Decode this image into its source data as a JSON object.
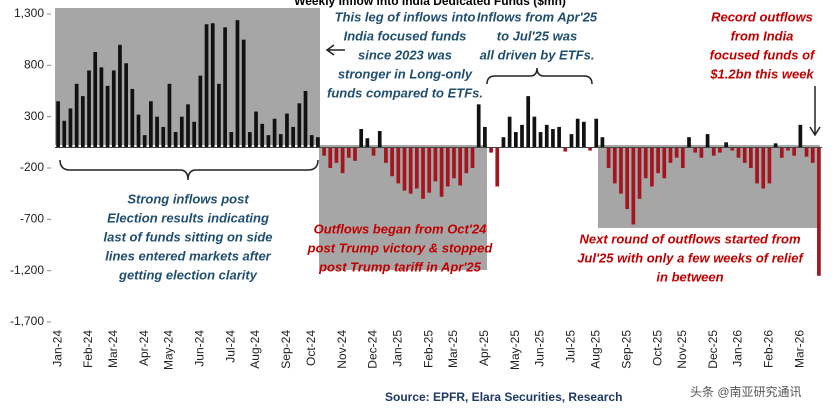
{
  "chart_data": {
    "type": "bar",
    "title": "Weekly Inflow into India Dedicated Funds ($mn)",
    "categories": [
      "Jan-24",
      null,
      null,
      null,
      null,
      "Feb-24",
      null,
      null,
      null,
      "Mar-24",
      null,
      null,
      null,
      null,
      "Apr-24",
      null,
      null,
      null,
      "May-24",
      null,
      null,
      null,
      null,
      "Jun-24",
      null,
      null,
      null,
      null,
      "Jul-24",
      null,
      null,
      null,
      "Aug-24",
      null,
      null,
      null,
      null,
      "Sep-24",
      null,
      null,
      null,
      "Oct-24",
      null,
      null,
      null,
      null,
      "Nov-24",
      null,
      null,
      null,
      null,
      "Dec-24",
      null,
      null,
      null,
      "Jan-25",
      null,
      null,
      null,
      null,
      "Feb-25",
      null,
      null,
      null,
      "Mar-25",
      null,
      null,
      null,
      null,
      "Apr-25",
      null,
      null,
      null,
      null,
      "May-25",
      null,
      null,
      null,
      "Jun-25",
      null,
      null,
      null,
      null,
      "Jul-25",
      null,
      null,
      null,
      "Aug-25",
      null,
      null,
      null,
      null,
      "Sep-25",
      null,
      null,
      null,
      null,
      "Oct-25",
      null,
      null,
      null,
      "Nov-25",
      null,
      null,
      null,
      null,
      "Dec-25",
      null,
      null,
      null,
      "Jan-26",
      null,
      null,
      null,
      null,
      "Feb-26",
      null,
      null,
      null,
      null,
      "Mar-26",
      null,
      null,
      null
    ],
    "values": [
      450,
      260,
      380,
      620,
      500,
      750,
      930,
      780,
      600,
      750,
      1000,
      820,
      570,
      320,
      120,
      450,
      300,
      200,
      620,
      150,
      300,
      420,
      250,
      700,
      1200,
      1210,
      620,
      1170,
      150,
      1240,
      1050,
      150,
      350,
      230,
      120,
      280,
      130,
      330,
      200,
      430,
      550,
      120,
      100,
      -80,
      -200,
      -150,
      -250,
      -100,
      -130,
      180,
      90,
      -80,
      160,
      -150,
      -280,
      -350,
      -420,
      -450,
      -400,
      -500,
      -440,
      -330,
      -480,
      -380,
      -300,
      -370,
      -250,
      -200,
      420,
      200,
      -50,
      -380,
      100,
      300,
      150,
      220,
      500,
      300,
      150,
      220,
      180,
      200,
      -40,
      130,
      280,
      250,
      -30,
      280,
      100,
      -200,
      -350,
      -450,
      -600,
      -750,
      -500,
      -300,
      -380,
      -250,
      -300,
      -150,
      -100,
      -200,
      100,
      -50,
      -100,
      130,
      -80,
      -50,
      50,
      -30,
      -100,
      -150,
      -200,
      -350,
      -400,
      -350,
      40,
      -100,
      -30,
      -80,
      220,
      -90,
      -150,
      -1250
    ],
    "positive_color": "#111111",
    "negative_color": "#a3161f",
    "ylim": [
      -1700,
      1300
    ],
    "yticks": [
      {
        "value": 1300,
        "label": "1,300"
      },
      800,
      300,
      -200,
      -700,
      {
        "value": -1200,
        "label": "-1,200"
      },
      {
        "value": -1700,
        "label": "-1,700"
      }
    ],
    "annotations": [
      {
        "color": "#1f4e6e",
        "lines": [
          "This leg of inflows into",
          "India focused funds",
          "since 2023 was",
          "stronger in Long-only",
          "funds compared to ETFs."
        ]
      },
      {
        "color": "#1f4e6e",
        "lines": [
          "Inflows from Apr'25",
          "to Jul'25 was",
          "all driven by ETFs."
        ]
      },
      {
        "color": "#c00000",
        "lines": [
          "Record outflows",
          "from India",
          "focused funds of",
          "$1.2bn this week"
        ]
      },
      {
        "color": "#1f4e6e",
        "lines": [
          "Strong inflows post",
          "Election results indicating",
          "last of funds sitting on side",
          "lines entered markets after",
          "getting election clarity"
        ]
      },
      {
        "color": "#c00000",
        "lines": [
          "Outflows began from Oct'24",
          "post Trump victory & stopped",
          "post Trump tariff in Apr'25"
        ]
      },
      {
        "color": "#c00000",
        "lines": [
          "Next round of outflows started from",
          "Jul'25 with only a few weeks of relief",
          "in between"
        ]
      }
    ],
    "source": "Source: EPFR, Elara Securities, Research",
    "watermark": "头条 @南亚研究通讯"
  }
}
